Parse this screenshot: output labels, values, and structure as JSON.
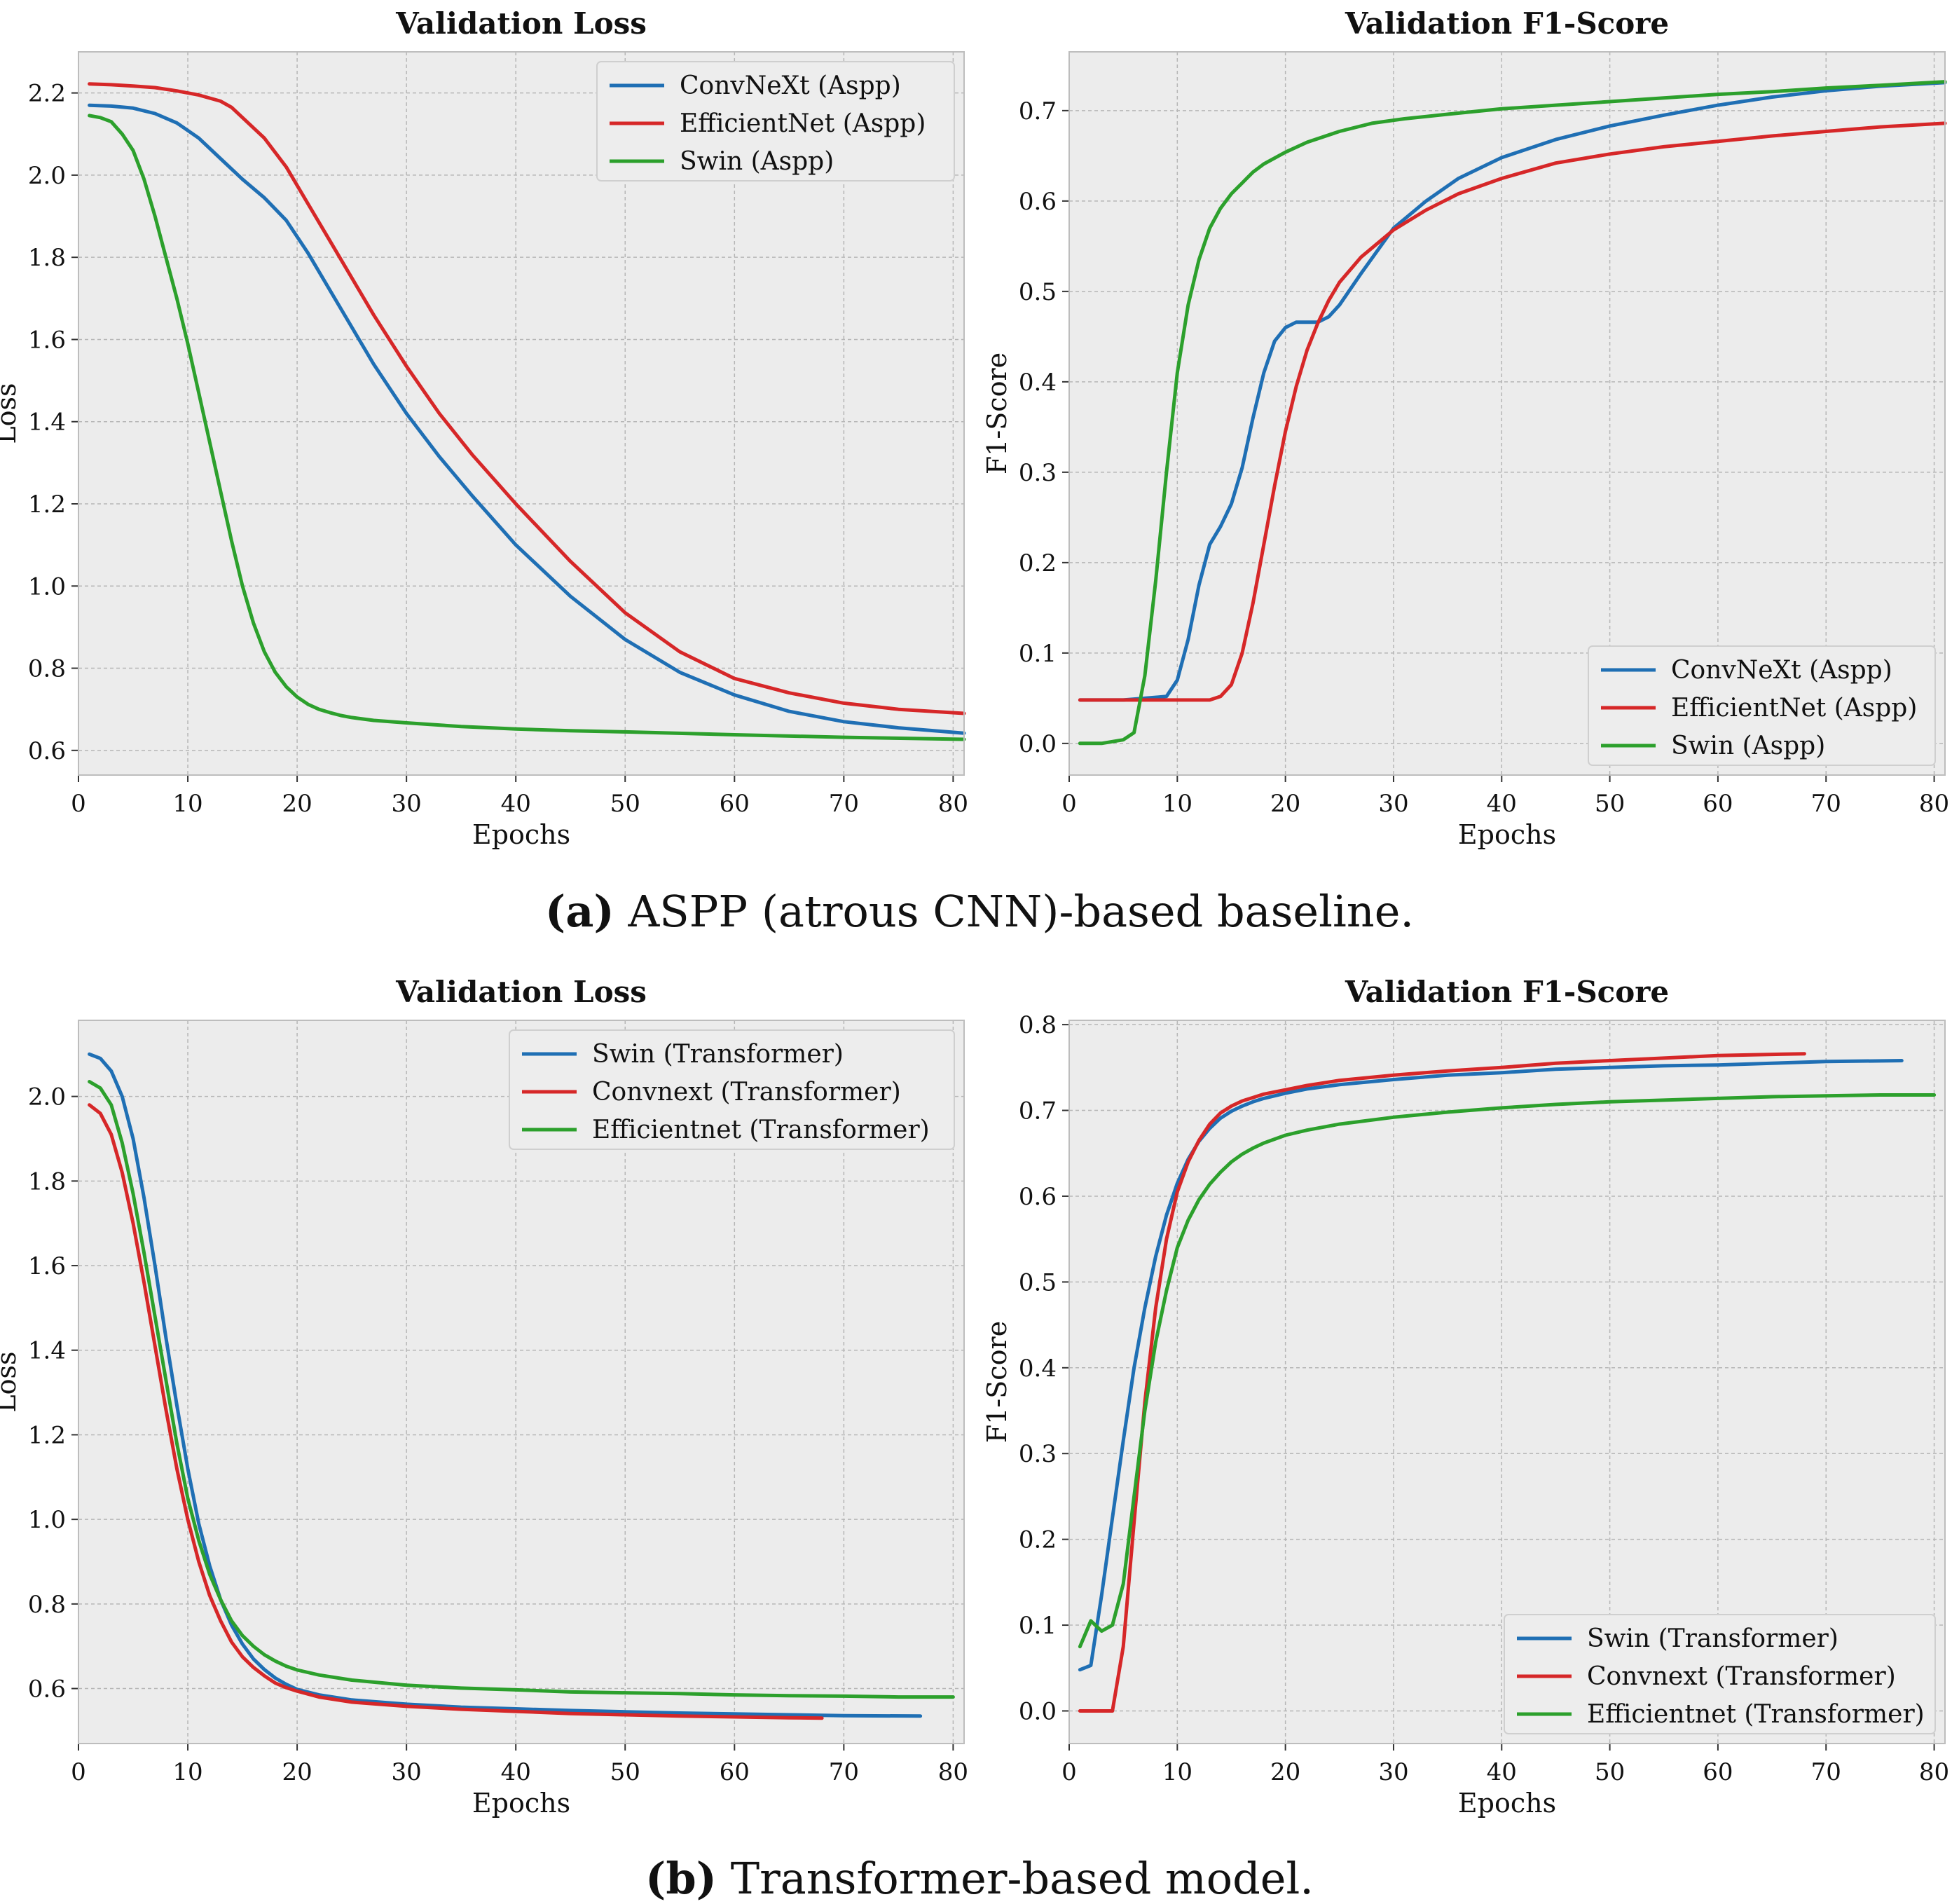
{
  "colors": {
    "blue": "#1f6fb4",
    "red": "#d62728",
    "green": "#2ca02c",
    "bg": "#ececec",
    "grid": "#b6b6b6"
  },
  "captions": {
    "a_label": "(a)",
    "a_text": "ASPP (atrous CNN)-based baseline.",
    "b_label": "(b)",
    "b_text": "Transformer-based model."
  },
  "chart_data": [
    {
      "type": "line",
      "title": "Validation Loss",
      "xlabel": "Epochs",
      "ylabel": "Loss",
      "xlim": [
        0,
        81
      ],
      "ylim": [
        0.54,
        2.3
      ],
      "xticks": [
        0,
        10,
        20,
        30,
        40,
        50,
        60,
        70,
        80
      ],
      "yticks": [
        0.6,
        0.8,
        1.0,
        1.2,
        1.4,
        1.6,
        1.8,
        2.0,
        2.2
      ],
      "yprec": 1,
      "legend": "top-right",
      "series": [
        {
          "name": "ConvNeXt (Aspp)",
          "color": "blue",
          "x": [
            1,
            3,
            5,
            7,
            9,
            11,
            13,
            15,
            17,
            19,
            21,
            23,
            25,
            27,
            30,
            33,
            36,
            40,
            45,
            50,
            55,
            60,
            65,
            70,
            75,
            81
          ],
          "y": [
            2.17,
            2.168,
            2.163,
            2.15,
            2.127,
            2.09,
            2.04,
            1.99,
            1.945,
            1.89,
            1.81,
            1.72,
            1.63,
            1.54,
            1.42,
            1.315,
            1.22,
            1.1,
            0.975,
            0.87,
            0.79,
            0.735,
            0.695,
            0.67,
            0.655,
            0.642
          ]
        },
        {
          "name": "EfficientNet (Aspp)",
          "color": "red",
          "x": [
            1,
            3,
            5,
            7,
            9,
            11,
            13,
            14,
            15,
            17,
            19,
            21,
            23,
            25,
            27,
            30,
            33,
            36,
            40,
            45,
            50,
            55,
            60,
            65,
            70,
            75,
            81
          ],
          "y": [
            2.222,
            2.22,
            2.217,
            2.213,
            2.205,
            2.195,
            2.18,
            2.165,
            2.14,
            2.09,
            2.02,
            1.93,
            1.84,
            1.75,
            1.66,
            1.535,
            1.42,
            1.32,
            1.2,
            1.06,
            0.935,
            0.84,
            0.775,
            0.74,
            0.715,
            0.7,
            0.69
          ]
        },
        {
          "name": "Swin (Aspp)",
          "color": "green",
          "x": [
            1,
            2,
            3,
            4,
            5,
            6,
            7,
            8,
            9,
            10,
            11,
            12,
            13,
            14,
            15,
            16,
            17,
            18,
            19,
            20,
            21,
            22,
            23,
            24,
            25,
            27,
            30,
            35,
            40,
            45,
            50,
            60,
            70,
            81
          ],
          "y": [
            2.145,
            2.14,
            2.13,
            2.1,
            2.06,
            1.99,
            1.9,
            1.8,
            1.7,
            1.59,
            1.47,
            1.35,
            1.23,
            1.11,
            1.0,
            0.91,
            0.84,
            0.79,
            0.755,
            0.73,
            0.712,
            0.7,
            0.692,
            0.685,
            0.68,
            0.673,
            0.667,
            0.658,
            0.652,
            0.648,
            0.645,
            0.638,
            0.632,
            0.627
          ]
        }
      ]
    },
    {
      "type": "line",
      "title": "Validation F1-Score",
      "xlabel": "Epochs",
      "ylabel": "F1-Score",
      "xlim": [
        0,
        81
      ],
      "ylim": [
        -0.035,
        0.765
      ],
      "xticks": [
        0,
        10,
        20,
        30,
        40,
        50,
        60,
        70,
        80
      ],
      "yticks": [
        0.0,
        0.1,
        0.2,
        0.3,
        0.4,
        0.5,
        0.6,
        0.7
      ],
      "yprec": 1,
      "legend": "bottom-right",
      "series": [
        {
          "name": "ConvNeXt (Aspp)",
          "color": "blue",
          "x": [
            1,
            5,
            9,
            10,
            11,
            12,
            13,
            14,
            15,
            16,
            17,
            18,
            19,
            20,
            21,
            22,
            23,
            24,
            25,
            27,
            30,
            33,
            36,
            40,
            45,
            50,
            55,
            60,
            65,
            70,
            75,
            81
          ],
          "y": [
            0.048,
            0.048,
            0.052,
            0.07,
            0.115,
            0.175,
            0.22,
            0.24,
            0.265,
            0.305,
            0.36,
            0.41,
            0.445,
            0.46,
            0.466,
            0.466,
            0.466,
            0.472,
            0.485,
            0.52,
            0.57,
            0.6,
            0.625,
            0.648,
            0.668,
            0.683,
            0.695,
            0.706,
            0.715,
            0.722,
            0.727,
            0.731
          ]
        },
        {
          "name": "EfficientNet (Aspp)",
          "color": "red",
          "x": [
            1,
            5,
            10,
            13,
            14,
            15,
            16,
            17,
            18,
            19,
            20,
            21,
            22,
            23,
            24,
            25,
            27,
            30,
            33,
            36,
            40,
            45,
            50,
            55,
            60,
            65,
            70,
            75,
            81
          ],
          "y": [
            0.048,
            0.048,
            0.048,
            0.048,
            0.052,
            0.065,
            0.1,
            0.155,
            0.22,
            0.285,
            0.345,
            0.395,
            0.435,
            0.465,
            0.49,
            0.51,
            0.538,
            0.568,
            0.59,
            0.608,
            0.625,
            0.642,
            0.652,
            0.66,
            0.666,
            0.672,
            0.677,
            0.682,
            0.686
          ]
        },
        {
          "name": "Swin (Aspp)",
          "color": "green",
          "x": [
            1,
            3,
            5,
            6,
            7,
            8,
            9,
            10,
            11,
            12,
            13,
            14,
            15,
            16,
            17,
            18,
            20,
            22,
            25,
            28,
            31,
            35,
            40,
            45,
            50,
            55,
            60,
            65,
            70,
            75,
            81
          ],
          "y": [
            0.0,
            0.0,
            0.004,
            0.012,
            0.075,
            0.18,
            0.3,
            0.41,
            0.485,
            0.535,
            0.57,
            0.592,
            0.608,
            0.62,
            0.632,
            0.641,
            0.654,
            0.665,
            0.677,
            0.686,
            0.691,
            0.696,
            0.702,
            0.706,
            0.71,
            0.714,
            0.718,
            0.721,
            0.725,
            0.728,
            0.732
          ]
        }
      ]
    },
    {
      "type": "line",
      "title": "Validation Loss",
      "xlabel": "Epochs",
      "ylabel": "Loss",
      "xlim": [
        0,
        81
      ],
      "ylim": [
        0.47,
        2.18
      ],
      "xticks": [
        0,
        10,
        20,
        30,
        40,
        50,
        60,
        70,
        80
      ],
      "yticks": [
        0.6,
        0.8,
        1.0,
        1.2,
        1.4,
        1.6,
        1.8,
        2.0
      ],
      "yprec": 1,
      "legend": "top-right",
      "series": [
        {
          "name": "Swin (Transformer)",
          "color": "blue",
          "x": [
            1,
            2,
            3,
            4,
            5,
            6,
            7,
            8,
            9,
            10,
            11,
            12,
            13,
            14,
            15,
            16,
            17,
            18,
            19,
            20,
            22,
            25,
            30,
            35,
            40,
            45,
            50,
            55,
            60,
            65,
            70,
            77
          ],
          "y": [
            2.1,
            2.09,
            2.06,
            2.0,
            1.9,
            1.76,
            1.6,
            1.43,
            1.27,
            1.12,
            0.99,
            0.89,
            0.81,
            0.75,
            0.705,
            0.67,
            0.645,
            0.625,
            0.61,
            0.598,
            0.585,
            0.573,
            0.563,
            0.556,
            0.552,
            0.548,
            0.545,
            0.542,
            0.54,
            0.538,
            0.536,
            0.535
          ]
        },
        {
          "name": "Convnext (Transformer)",
          "color": "red",
          "x": [
            1,
            2,
            3,
            4,
            5,
            6,
            7,
            8,
            9,
            10,
            11,
            12,
            13,
            14,
            15,
            16,
            17,
            18,
            19,
            20,
            22,
            25,
            30,
            35,
            40,
            45,
            50,
            55,
            60,
            65,
            68
          ],
          "y": [
            1.98,
            1.96,
            1.91,
            1.82,
            1.7,
            1.56,
            1.41,
            1.26,
            1.12,
            1.0,
            0.9,
            0.82,
            0.76,
            0.71,
            0.675,
            0.65,
            0.63,
            0.613,
            0.602,
            0.594,
            0.58,
            0.568,
            0.558,
            0.551,
            0.546,
            0.541,
            0.538,
            0.535,
            0.533,
            0.531,
            0.53
          ]
        },
        {
          "name": "Efficientnet (Transformer)",
          "color": "green",
          "x": [
            1,
            2,
            3,
            4,
            5,
            6,
            7,
            8,
            9,
            10,
            11,
            12,
            13,
            14,
            15,
            16,
            17,
            18,
            19,
            20,
            22,
            25,
            30,
            35,
            40,
            45,
            50,
            55,
            60,
            65,
            70,
            75,
            80
          ],
          "y": [
            2.035,
            2.02,
            1.98,
            1.89,
            1.77,
            1.63,
            1.48,
            1.33,
            1.18,
            1.05,
            0.95,
            0.87,
            0.81,
            0.76,
            0.725,
            0.7,
            0.68,
            0.665,
            0.653,
            0.644,
            0.632,
            0.62,
            0.608,
            0.601,
            0.597,
            0.592,
            0.59,
            0.588,
            0.585,
            0.583,
            0.582,
            0.58,
            0.58
          ]
        }
      ]
    },
    {
      "type": "line",
      "title": "Validation F1-Score",
      "xlabel": "Epochs",
      "ylabel": "F1-Score",
      "xlim": [
        0,
        81
      ],
      "ylim": [
        -0.038,
        0.805
      ],
      "xticks": [
        0,
        10,
        20,
        30,
        40,
        50,
        60,
        70,
        80
      ],
      "yticks": [
        0.0,
        0.1,
        0.2,
        0.3,
        0.4,
        0.5,
        0.6,
        0.7,
        0.8
      ],
      "yprec": 1,
      "legend": "bottom-right",
      "series": [
        {
          "name": "Swin (Transformer)",
          "color": "blue",
          "x": [
            1,
            2,
            3,
            4,
            5,
            6,
            7,
            8,
            9,
            10,
            11,
            12,
            13,
            14,
            15,
            16,
            17,
            18,
            20,
            22,
            25,
            30,
            35,
            40,
            45,
            50,
            55,
            60,
            65,
            70,
            77
          ],
          "y": [
            0.048,
            0.053,
            0.135,
            0.225,
            0.315,
            0.4,
            0.47,
            0.53,
            0.578,
            0.615,
            0.643,
            0.664,
            0.679,
            0.691,
            0.699,
            0.705,
            0.71,
            0.714,
            0.72,
            0.725,
            0.73,
            0.736,
            0.741,
            0.744,
            0.748,
            0.75,
            0.752,
            0.753,
            0.755,
            0.757,
            0.758
          ]
        },
        {
          "name": "Convnext (Transformer)",
          "color": "red",
          "x": [
            1,
            2,
            3,
            4,
            5,
            6,
            7,
            8,
            9,
            10,
            11,
            12,
            13,
            14,
            15,
            16,
            17,
            18,
            20,
            22,
            25,
            30,
            35,
            40,
            45,
            50,
            55,
            60,
            68
          ],
          "y": [
            0.0,
            0.0,
            0.0,
            0.0,
            0.075,
            0.22,
            0.36,
            0.47,
            0.55,
            0.605,
            0.64,
            0.665,
            0.684,
            0.697,
            0.705,
            0.711,
            0.715,
            0.719,
            0.724,
            0.729,
            0.735,
            0.741,
            0.746,
            0.75,
            0.755,
            0.758,
            0.761,
            0.764,
            0.766
          ]
        },
        {
          "name": "Efficientnet (Transformer)",
          "color": "green",
          "x": [
            1,
            2,
            3,
            4,
            5,
            6,
            7,
            8,
            9,
            10,
            11,
            12,
            13,
            14,
            15,
            16,
            17,
            18,
            20,
            22,
            25,
            30,
            35,
            40,
            45,
            50,
            55,
            60,
            65,
            70,
            75,
            80
          ],
          "y": [
            0.075,
            0.105,
            0.093,
            0.1,
            0.148,
            0.25,
            0.35,
            0.43,
            0.49,
            0.54,
            0.572,
            0.596,
            0.614,
            0.628,
            0.64,
            0.649,
            0.656,
            0.662,
            0.671,
            0.677,
            0.684,
            0.692,
            0.698,
            0.703,
            0.707,
            0.71,
            0.712,
            0.714,
            0.716,
            0.717,
            0.718,
            0.718
          ]
        }
      ]
    }
  ]
}
